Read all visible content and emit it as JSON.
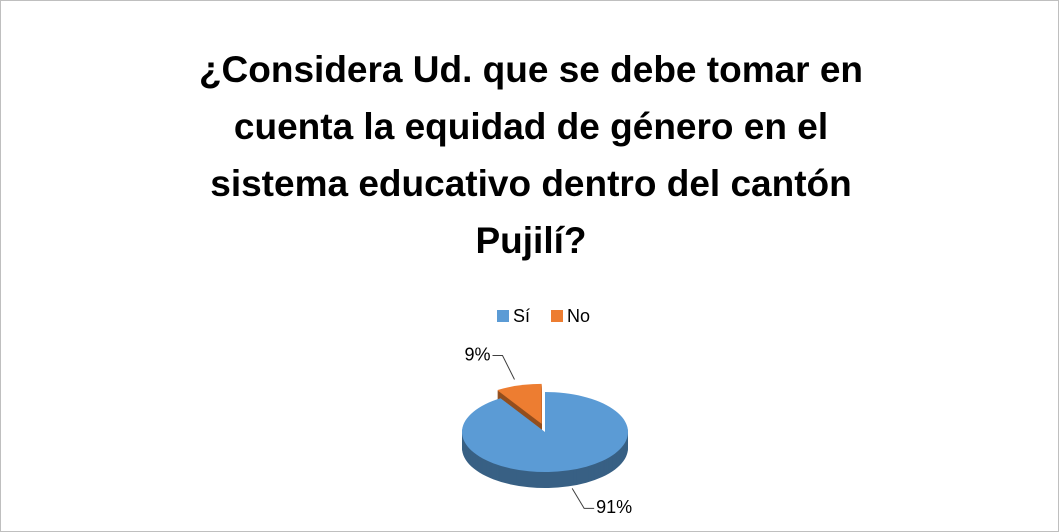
{
  "chart_data": {
    "type": "pie",
    "title": "¿Considera Ud. que se debe tomar en\ncuenta la equidad de género en el\nsistema educativo dentro del cantón\nPujilí?",
    "categories": [
      "Sí",
      "No"
    ],
    "values": [
      91,
      9
    ],
    "value_labels": [
      "91%",
      "9%"
    ],
    "colors": [
      "#5b9bd5",
      "#ed7d31"
    ],
    "legend": "top",
    "explode": [
      false,
      true
    ]
  }
}
